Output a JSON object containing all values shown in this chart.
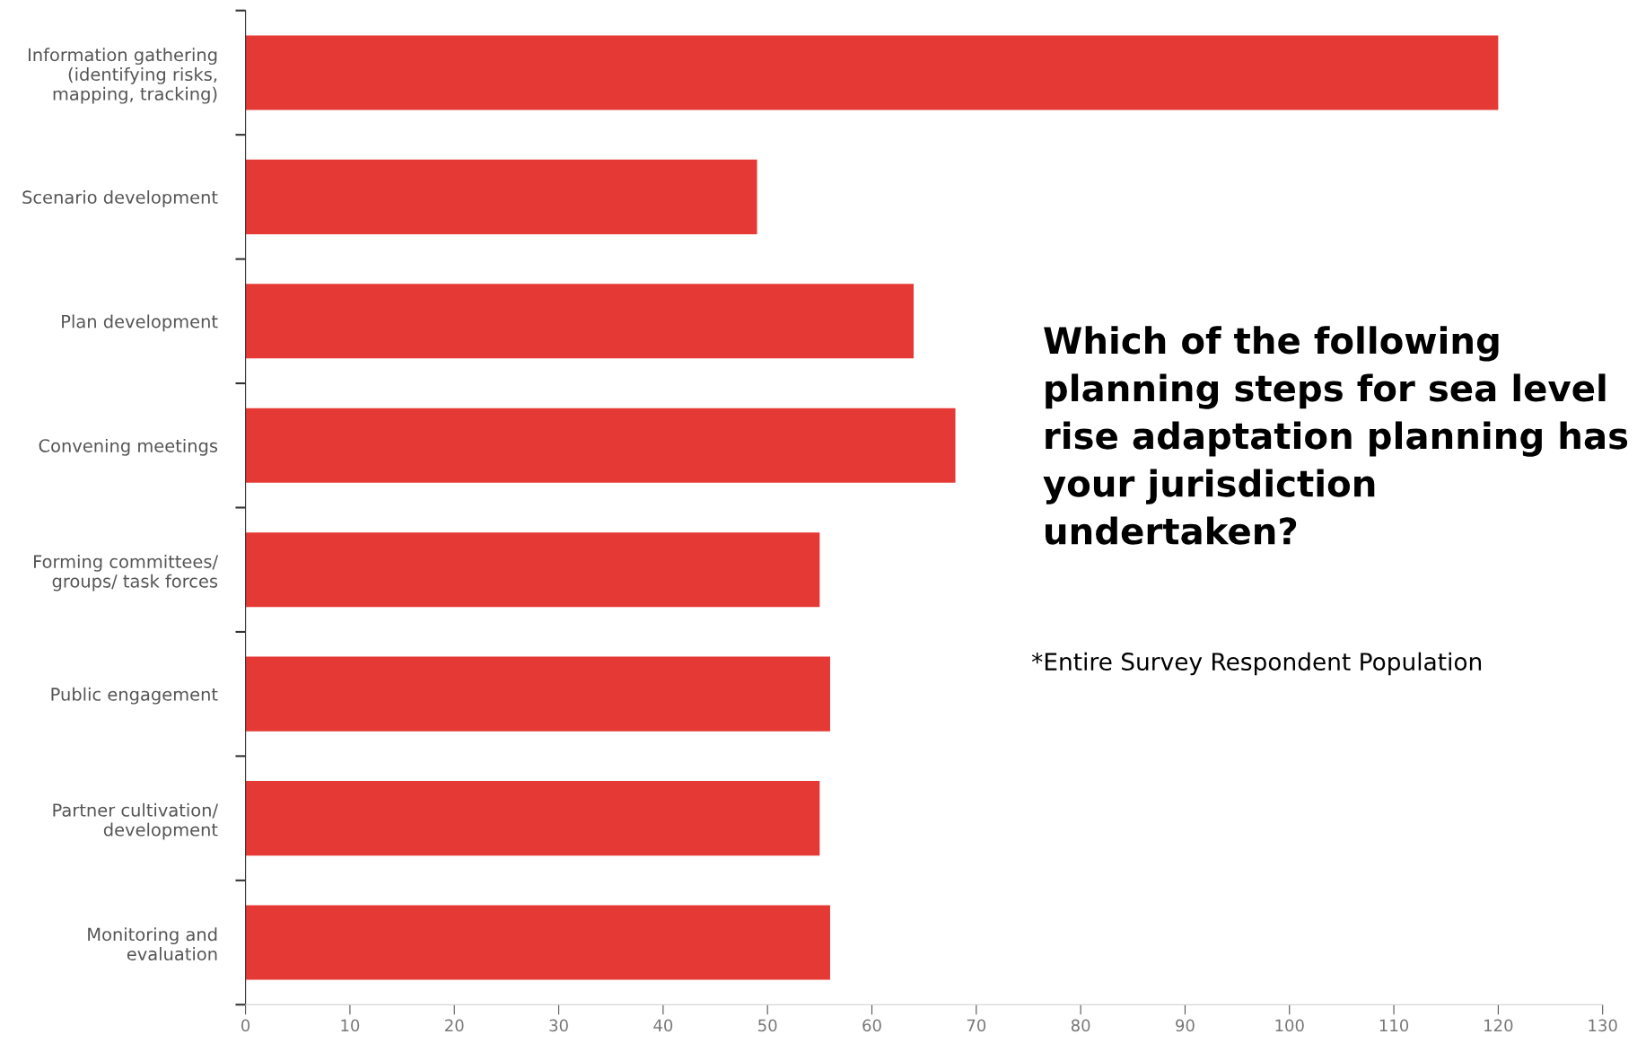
{
  "chart_data": {
    "type": "bar",
    "orientation": "horizontal",
    "title": "Which of the following planning steps for sea level rise adaptation planning has your jurisdiction undertaken?",
    "annotations": [
      "*Entire Survey Respondent Population"
    ],
    "categories": [
      "Information gathering\n(identifying risks,\nmapping, tracking)",
      "Scenario development",
      "Plan development",
      "Convening meetings",
      "Forming committees/\ngroups/ task forces",
      "Public engagement",
      "Partner cultivation/\ndevelopment",
      "Monitoring and\nevaluation"
    ],
    "values": [
      120,
      49,
      64,
      68,
      55,
      56,
      55,
      56
    ],
    "color": "#e53935",
    "xlim": [
      0,
      130
    ],
    "xticks": [
      0,
      10,
      20,
      30,
      40,
      50,
      60,
      70,
      80,
      90,
      100,
      110,
      120,
      130
    ],
    "grid": false,
    "legend": false
  }
}
